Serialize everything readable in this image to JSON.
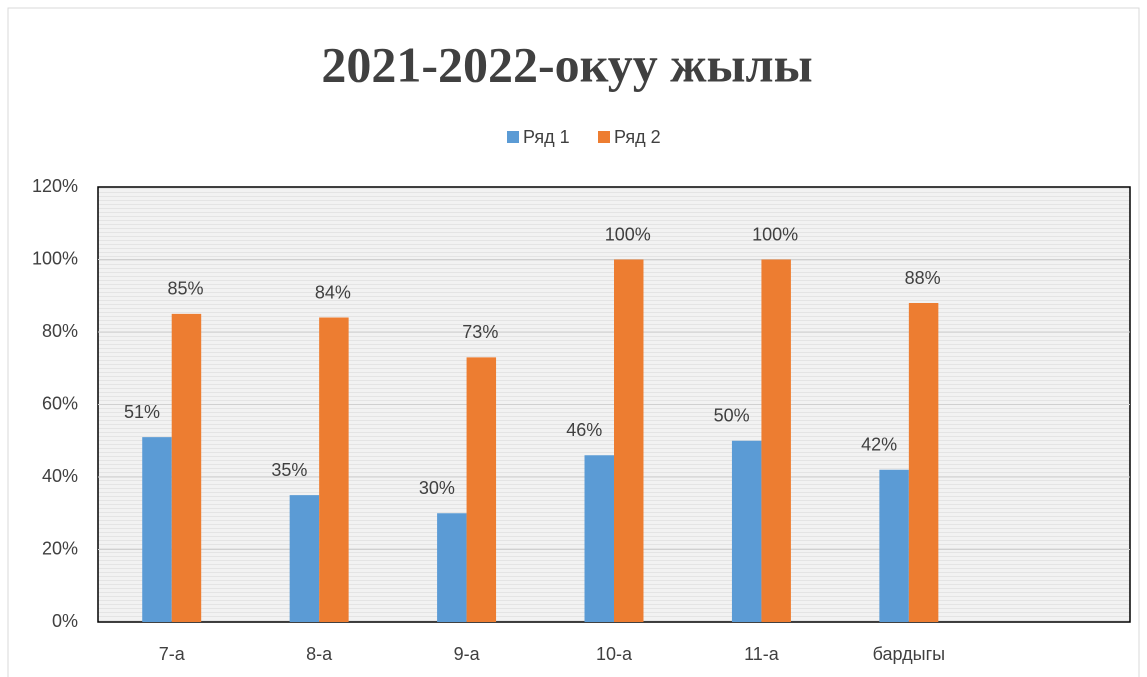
{
  "chart_data": {
    "type": "bar",
    "title": "2021-2022-окуу жылы",
    "categories": [
      "7-а",
      "8-а",
      "9-а",
      "10-а",
      "11-а",
      "бардыгы",
      null
    ],
    "series": [
      {
        "name": "Ряд 1",
        "color": "#5b9bd5",
        "values": [
          51,
          35,
          30,
          46,
          50,
          42,
          null
        ],
        "value_labels": [
          "51%",
          "35%",
          "30%",
          "46%",
          "50%",
          "42%",
          null
        ]
      },
      {
        "name": "Ряд 2",
        "color": "#ed7d31",
        "values": [
          85,
          84,
          73,
          100,
          100,
          88,
          null
        ],
        "value_labels": [
          "85%",
          "84%",
          "73%",
          "100%",
          "100%",
          "88%",
          null
        ]
      }
    ],
    "ylim": [
      0,
      120
    ],
    "yticks": [
      {
        "value": 0,
        "label": "0%"
      },
      {
        "value": 20,
        "label": "20%"
      },
      {
        "value": 40,
        "label": "40%"
      },
      {
        "value": 60,
        "label": "60%"
      },
      {
        "value": 80,
        "label": "80%"
      },
      {
        "value": 100,
        "label": "100%"
      },
      {
        "value": 120,
        "label": "120%"
      }
    ],
    "grid": true,
    "legend": "top"
  }
}
